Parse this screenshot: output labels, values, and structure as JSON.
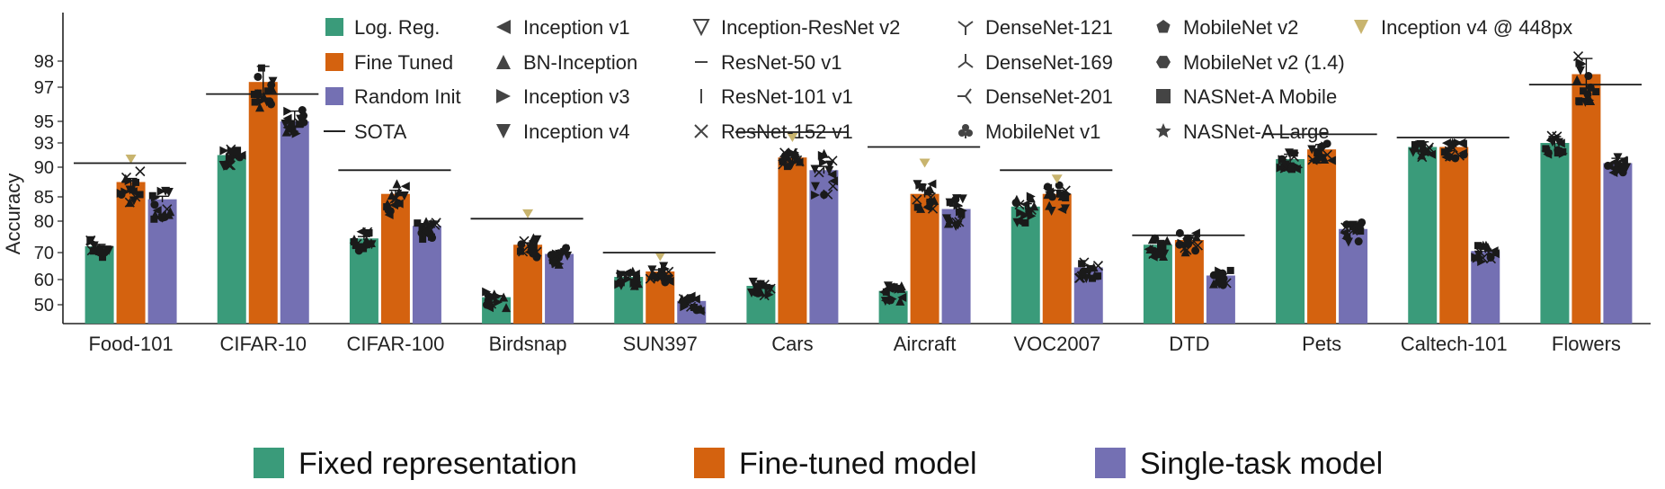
{
  "colors": {
    "fixed": "#3a9b7a",
    "finetuned": "#d4620f",
    "single": "#7470b3",
    "sota": "#1a1a1a",
    "marker": "#1a1a1a",
    "inception448": "#c8b46e"
  },
  "inner_legend": {
    "columns": [
      [
        {
          "label": "Log. Reg.",
          "symbol": "swatch-fixed"
        },
        {
          "label": "Fine Tuned",
          "symbol": "swatch-finetuned"
        },
        {
          "label": "Random Init",
          "symbol": "swatch-single"
        },
        {
          "label": "SOTA",
          "symbol": "line"
        }
      ],
      [
        {
          "label": "Inception v1",
          "symbol": "triangle-left"
        },
        {
          "label": "BN-Inception",
          "symbol": "triangle-up"
        },
        {
          "label": "Inception v3",
          "symbol": "triangle-right"
        },
        {
          "label": "Inception v4",
          "symbol": "triangle-down"
        }
      ],
      [
        {
          "label": "Inception-ResNet v2",
          "symbol": "triangle-down-open"
        },
        {
          "label": "ResNet-50 v1",
          "symbol": "hline"
        },
        {
          "label": "ResNet-101 v1",
          "symbol": "vline"
        },
        {
          "label": "ResNet-152 v1",
          "symbol": "x"
        }
      ],
      [
        {
          "label": "DenseNet-121",
          "symbol": "tri-down"
        },
        {
          "label": "DenseNet-169",
          "symbol": "tri-up"
        },
        {
          "label": "DenseNet-201",
          "symbol": "tri-left"
        },
        {
          "label": "MobileNet v1",
          "symbol": "club"
        }
      ],
      [
        {
          "label": "MobileNet v2",
          "symbol": "pentagon"
        },
        {
          "label": "MobileNet v2 (1.4)",
          "symbol": "hexagon"
        },
        {
          "label": "NASNet-A Mobile",
          "symbol": "square"
        },
        {
          "label": "NASNet-A Large",
          "symbol": "star"
        }
      ],
      [
        {
          "label": "Inception v4 @ 448px",
          "symbol": "triangle-down-gold"
        }
      ]
    ]
  },
  "bottom_legend": [
    {
      "label": "Fixed representation",
      "color_key": "fixed"
    },
    {
      "label": "Fine-tuned model",
      "color_key": "finetuned"
    },
    {
      "label": "Single-task model",
      "color_key": "single"
    }
  ],
  "chart_data": {
    "type": "bar",
    "ylabel": "Accuracy",
    "yticks": [
      50,
      60,
      70,
      80,
      85,
      90,
      93,
      95,
      97,
      98
    ],
    "ylim": [
      45,
      99.5
    ],
    "grid": false,
    "categories": [
      "Food-101",
      "CIFAR-10",
      "CIFAR-100",
      "Birdsnap",
      "SUN397",
      "Cars",
      "Aircraft",
      "VOC2007",
      "DTD",
      "Pets",
      "Caltech-101",
      "Flowers"
    ],
    "series": [
      {
        "name": "Log. Reg.",
        "color_key": "fixed",
        "values": [
          72.0,
          91.5,
          74.5,
          53.0,
          61.0,
          57.5,
          55.5,
          83.0,
          72.5,
          91.0,
          92.5,
          93.0
        ]
      },
      {
        "name": "Fine Tuned",
        "color_key": "finetuned",
        "values": [
          87.5,
          97.2,
          85.5,
          72.5,
          63.0,
          91.2,
          85.5,
          85.5,
          74.0,
          92.2,
          92.5,
          97.5
        ]
      },
      {
        "name": "Random Init",
        "color_key": "single",
        "values": [
          84.5,
          95.0,
          78.5,
          69.5,
          51.5,
          89.5,
          82.5,
          64.5,
          61.5,
          77.5,
          70.5,
          90.5
        ]
      }
    ],
    "sota": [
      90.5,
      96.6,
      89.5,
      80.5,
      70.0,
      94.0,
      92.5,
      89.5,
      75.5,
      93.8,
      93.5,
      97.1
    ],
    "inception_448": [
      91.0,
      null,
      null,
      81.5,
      68.5,
      93.5,
      90.5,
      88.0,
      null,
      null,
      null,
      null
    ]
  }
}
